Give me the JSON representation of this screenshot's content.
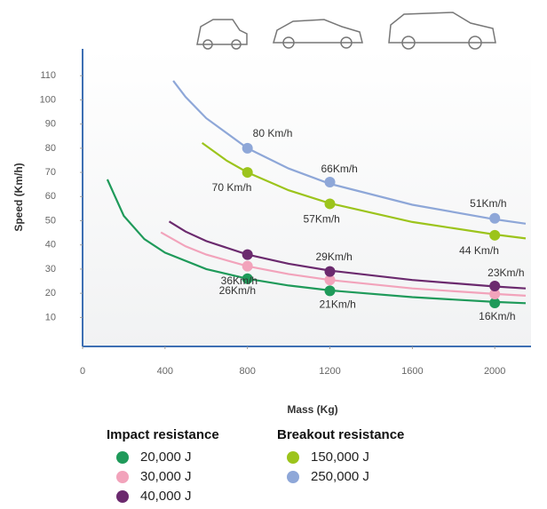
{
  "chart_data": {
    "type": "line",
    "x_label": "Mass (Kg)",
    "y_label": "Speed (Km/h)",
    "xlim": [
      0,
      2150
    ],
    "ylim": [
      -2,
      120
    ],
    "xticks": [
      0,
      400,
      800,
      1200,
      1600,
      2000
    ],
    "yticks": [
      10,
      20,
      30,
      40,
      50,
      60,
      70,
      80,
      90,
      100,
      110
    ],
    "groups": [
      {
        "title": "Impact resistance",
        "series": [
          {
            "name": "20,000 J",
            "color": "#1f9a5a",
            "x": [
              120,
              200,
              300,
              400,
              600,
              800,
              1000,
              1200,
              1600,
              2000,
              2150
            ],
            "values": [
              67.1,
              52,
              42.4,
              36.8,
              30,
              26,
              23.2,
              21.2,
              18.4,
              16.4,
              15.9
            ],
            "markers": {
              "x": [
                800,
                1200,
                2000
              ],
              "values": [
                26,
                21,
                16
              ],
              "value_labels": [
                "26Km/h",
                "21Km/h",
                "16Km/h"
              ]
            }
          },
          {
            "name": "30,000 J",
            "color": "#f2a3bb",
            "x": [
              380,
              500,
              600,
              800,
              1000,
              1200,
              1600,
              2000,
              2150
            ],
            "values": [
              45.2,
              39.4,
              36,
              31.2,
              27.9,
              25.5,
              22,
              19.7,
              19
            ],
            "markers": {
              "x": [
                800,
                1200,
                2000
              ],
              "values": [
                31.2,
                25.5,
                19.7
              ]
            }
          },
          {
            "name": "40,000 J",
            "color": "#6b2a6e",
            "x": [
              420,
              500,
              600,
              800,
              1000,
              1200,
              1600,
              2000,
              2150
            ],
            "values": [
              49.7,
              45.5,
              41.6,
              36,
              32.2,
              29.4,
              25.5,
              22.8,
              22
            ],
            "markers": {
              "x": [
                800,
                1200,
                2000
              ],
              "values": [
                36,
                29,
                23
              ],
              "value_labels": [
                "36Km/h",
                "29Km/h",
                "23Km/h"
              ]
            }
          }
        ]
      },
      {
        "title": "Breakout resistance",
        "series": [
          {
            "name": "150,000 J",
            "color": "#9cc41c",
            "x": [
              580,
              700,
              800,
              1000,
              1200,
              1600,
              2000,
              2150
            ],
            "values": [
              82.2,
              74.8,
              70,
              62.6,
              57.2,
              49.5,
              44.3,
              42.7
            ],
            "markers": {
              "x": [
                800,
                1200,
                2000
              ],
              "values": [
                70,
                57,
                44
              ],
              "value_labels": [
                "70 Km/h",
                "57Km/h",
                "44 Km/h"
              ]
            }
          },
          {
            "name": "250,000 J",
            "color": "#8ea7d8",
            "x": [
              440,
              500,
              600,
              800,
              1000,
              1200,
              1600,
              2000,
              2150
            ],
            "values": [
              107.9,
              101.2,
              92.4,
              80,
              71.6,
              65.3,
              56.6,
              50.6,
              48.8
            ],
            "markers": {
              "x": [
                800,
                1200,
                2000
              ],
              "values": [
                80,
                66,
                51
              ],
              "value_labels": [
                "80 Km/h",
                "66Km/h",
                "51Km/h"
              ]
            }
          }
        ]
      }
    ]
  }
}
